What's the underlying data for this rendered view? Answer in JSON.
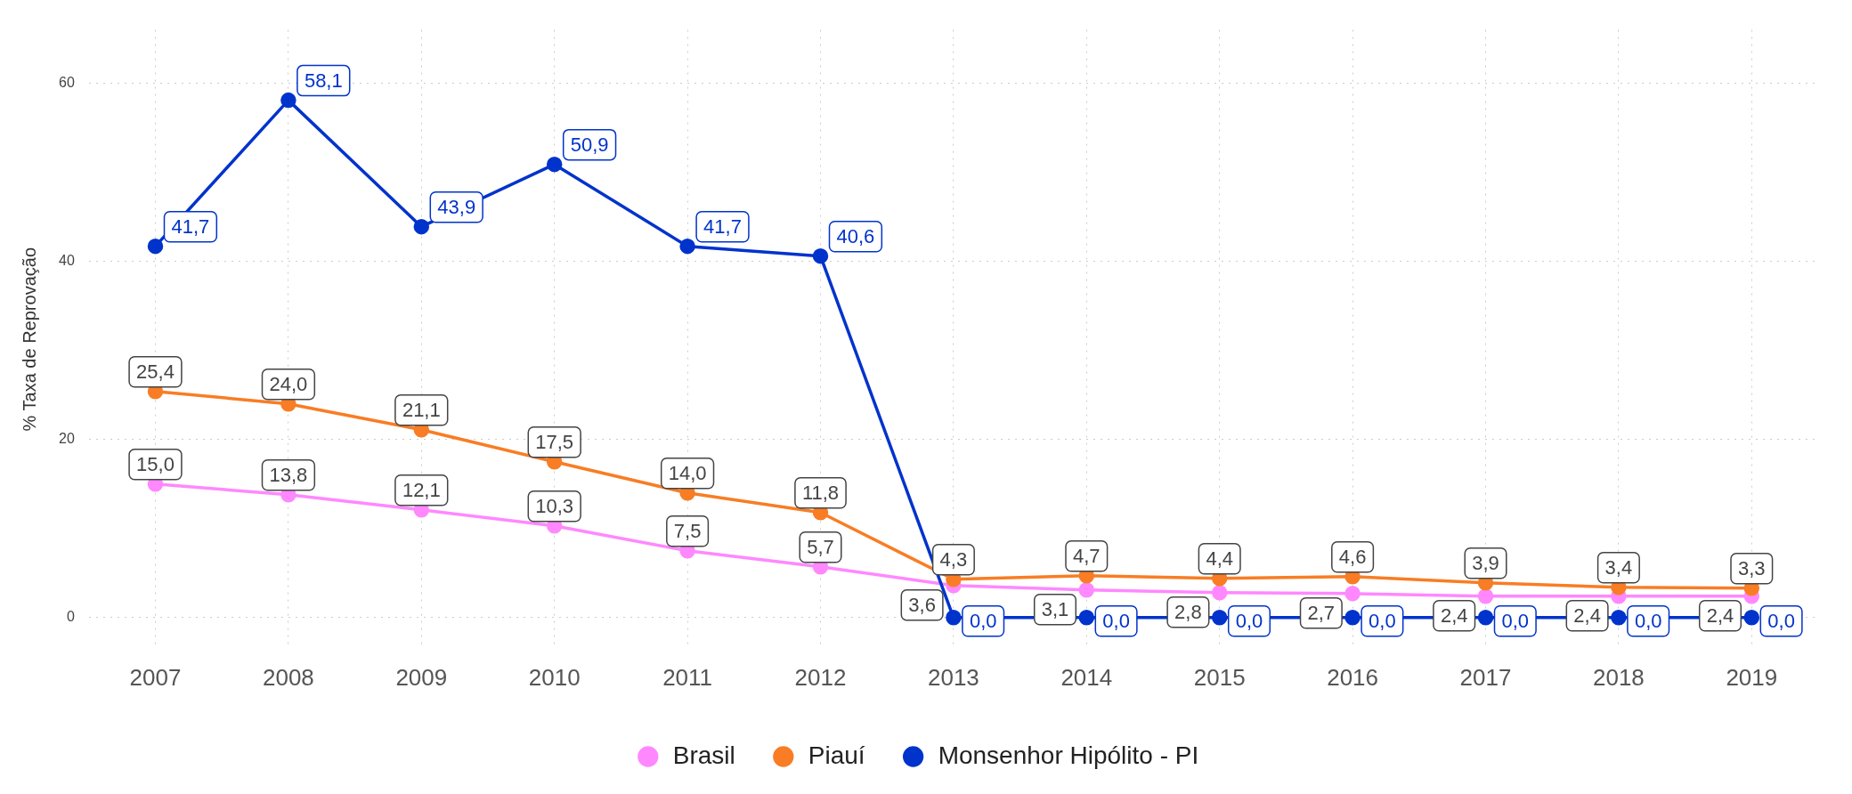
{
  "chart_data": {
    "type": "line",
    "ylabel": "% Taxa de Reprovação",
    "categories": [
      "2007",
      "2008",
      "2009",
      "2010",
      "2011",
      "2012",
      "2013",
      "2014",
      "2015",
      "2016",
      "2017",
      "2018",
      "2019"
    ],
    "series": [
      {
        "name": "Brasil",
        "color": "#ff88ff",
        "values": [
          15.0,
          13.8,
          12.1,
          10.3,
          7.5,
          5.7,
          3.6,
          3.1,
          2.8,
          2.7,
          2.4,
          2.4,
          2.4
        ],
        "value_labels": [
          "15,0",
          "13,8",
          "12,1",
          "10,3",
          "7,5",
          "5,7",
          "3,6",
          "3,1",
          "2,8",
          "2,7",
          "2,4",
          "2,4",
          "2,4"
        ]
      },
      {
        "name": "Piauí",
        "color": "#f87d24",
        "values": [
          25.4,
          24.0,
          21.1,
          17.5,
          14.0,
          11.8,
          4.3,
          4.7,
          4.4,
          4.6,
          3.9,
          3.4,
          3.3
        ],
        "value_labels": [
          "25,4",
          "24,0",
          "21,1",
          "17,5",
          "14,0",
          "11,8",
          "4,3",
          "4,7",
          "4,4",
          "4,6",
          "3,9",
          "3,4",
          "3,3"
        ]
      },
      {
        "name": "Monsenhor Hipólito - PI",
        "color": "#0033cc",
        "values": [
          41.7,
          58.1,
          43.9,
          50.9,
          41.7,
          40.6,
          0.0,
          0.0,
          0.0,
          0.0,
          0.0,
          0.0,
          0.0
        ],
        "value_labels": [
          "41,7",
          "58,1",
          "43,9",
          "50,9",
          "41,7",
          "40,6",
          "0,0",
          "0,0",
          "0,0",
          "0,0",
          "0,0",
          "0,0",
          "0,0"
        ]
      }
    ],
    "ylim": [
      -3.5,
      66
    ],
    "yticks": [
      0,
      20,
      40,
      60
    ],
    "grid": true,
    "legend": "bottom",
    "marker": "circle",
    "line_style": "solid"
  }
}
